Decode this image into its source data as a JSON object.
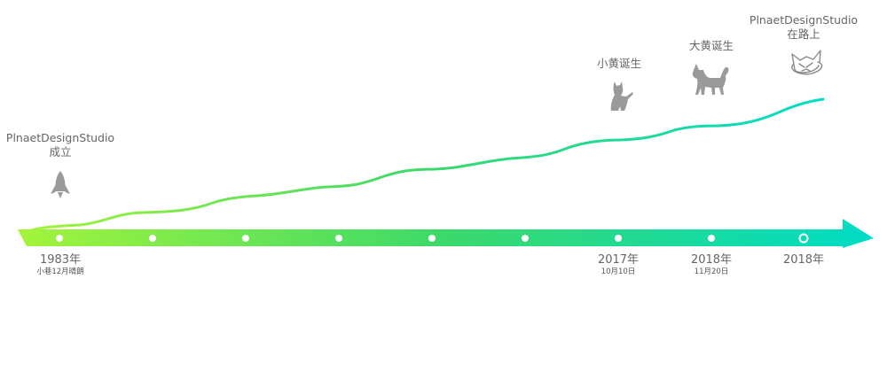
{
  "colors": {
    "gradient_start": "#a3f43a",
    "gradient_mid": "#3bd96a",
    "gradient_end": "#00dcc6",
    "icon": "#9a9a9a",
    "text": "#666666"
  },
  "milestones": [
    {
      "id": "founding",
      "title_line1": "PlnaetDesignStudio",
      "title_line2": "成立",
      "year": "1983年",
      "date": "小巷12月晴朗",
      "icon": "rocket-icon"
    },
    {
      "id": "xiaohuang",
      "title_line1": "小黄诞生",
      "year": "2017年",
      "date": "10月10日",
      "icon": "sitting-dog-icon"
    },
    {
      "id": "dahuang",
      "title_line1": "大黄诞生",
      "year": "2018年",
      "date": "11月20日",
      "icon": "standing-dog-icon"
    },
    {
      "id": "on-the-road",
      "title_line1": "PlnaetDesignStudio",
      "title_line2": "在路上",
      "year": "2018年",
      "icon": "planet-cat-icon"
    }
  ]
}
